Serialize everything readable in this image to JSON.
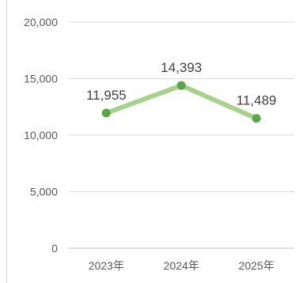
{
  "chart_data": {
    "type": "line",
    "categories": [
      "2023年",
      "2024年",
      "2025年"
    ],
    "series": [
      {
        "values": [
          11955,
          14393,
          11489
        ]
      }
    ],
    "data_labels": [
      "11,955",
      "14,393",
      "11,489"
    ],
    "y_ticks": [
      {
        "value": 0,
        "label": "0"
      },
      {
        "value": 5000,
        "label": "5,000"
      },
      {
        "value": 10000,
        "label": "10,000"
      },
      {
        "value": 15000,
        "label": "15,000"
      },
      {
        "value": 20000,
        "label": "20,000"
      }
    ],
    "ylim": [
      0,
      20000
    ],
    "grid": true,
    "legend": "none",
    "title": "",
    "xlabel": "",
    "ylabel": "",
    "colors": {
      "line": "#a9d18e",
      "marker": "#5aa54a",
      "grid": "#d9d9d9",
      "axis": "#bfbfbf"
    }
  }
}
